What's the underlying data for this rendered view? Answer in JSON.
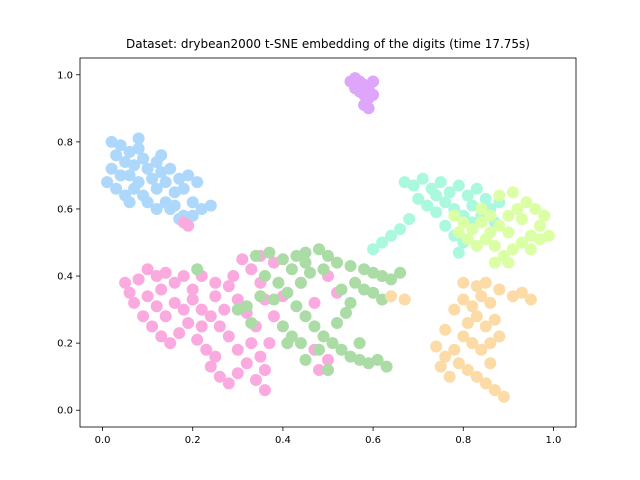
{
  "chart_data": {
    "type": "scatter",
    "title": "Dataset: drybean2000 t-SNE embedding of the digits (time 17.75s)",
    "xlabel": "",
    "ylabel": "",
    "xlim": [
      -0.05,
      1.05
    ],
    "ylim": [
      -0.05,
      1.05
    ],
    "xticks": [
      "0.0",
      "0.2",
      "0.4",
      "0.6",
      "0.8",
      "1.0"
    ],
    "yticks": [
      "0.0",
      "0.2",
      "0.4",
      "0.6",
      "0.8",
      "1.0"
    ],
    "xtick_values": [
      0.0,
      0.2,
      0.4,
      0.6,
      0.8,
      1.0
    ],
    "ytick_values": [
      0.0,
      0.2,
      0.4,
      0.6,
      0.8,
      1.0
    ],
    "grid": false,
    "series": [
      {
        "color": "#add8fb",
        "points": [
          [
            0.02,
            0.8
          ],
          [
            0.04,
            0.79
          ],
          [
            0.03,
            0.76
          ],
          [
            0.05,
            0.74
          ],
          [
            0.02,
            0.72
          ],
          [
            0.04,
            0.7
          ],
          [
            0.01,
            0.68
          ],
          [
            0.03,
            0.66
          ],
          [
            0.06,
            0.77
          ],
          [
            0.07,
            0.73
          ],
          [
            0.08,
            0.78
          ],
          [
            0.09,
            0.75
          ],
          [
            0.1,
            0.72
          ],
          [
            0.11,
            0.69
          ],
          [
            0.08,
            0.68
          ],
          [
            0.06,
            0.7
          ],
          [
            0.07,
            0.66
          ],
          [
            0.09,
            0.64
          ],
          [
            0.12,
            0.74
          ],
          [
            0.13,
            0.71
          ],
          [
            0.14,
            0.68
          ],
          [
            0.12,
            0.66
          ],
          [
            0.15,
            0.72
          ],
          [
            0.1,
            0.62
          ],
          [
            0.12,
            0.6
          ],
          [
            0.14,
            0.62
          ],
          [
            0.16,
            0.65
          ],
          [
            0.17,
            0.69
          ],
          [
            0.18,
            0.66
          ],
          [
            0.16,
            0.61
          ],
          [
            0.18,
            0.58
          ],
          [
            0.2,
            0.62
          ],
          [
            0.2,
            0.58
          ],
          [
            0.22,
            0.6
          ],
          [
            0.19,
            0.7
          ],
          [
            0.21,
            0.68
          ],
          [
            0.24,
            0.61
          ],
          [
            0.05,
            0.64
          ],
          [
            0.13,
            0.76
          ],
          [
            0.08,
            0.81
          ],
          [
            0.15,
            0.6
          ],
          [
            0.17,
            0.57
          ],
          [
            0.06,
            0.62
          ]
        ]
      },
      {
        "color": "#dda6fa",
        "points": [
          [
            0.55,
            0.98
          ],
          [
            0.56,
            0.99
          ],
          [
            0.57,
            0.98
          ],
          [
            0.58,
            0.97
          ],
          [
            0.56,
            0.96
          ],
          [
            0.57,
            0.95
          ],
          [
            0.58,
            0.94
          ],
          [
            0.59,
            0.93
          ],
          [
            0.58,
            0.91
          ],
          [
            0.59,
            0.9
          ],
          [
            0.6,
            0.94
          ],
          [
            0.59,
            0.96
          ],
          [
            0.6,
            0.98
          ]
        ]
      },
      {
        "color": "#fbaadf",
        "points": [
          [
            0.05,
            0.38
          ],
          [
            0.06,
            0.35
          ],
          [
            0.08,
            0.39
          ],
          [
            0.1,
            0.42
          ],
          [
            0.12,
            0.4
          ],
          [
            0.14,
            0.41
          ],
          [
            0.16,
            0.38
          ],
          [
            0.18,
            0.4
          ],
          [
            0.2,
            0.36
          ],
          [
            0.1,
            0.34
          ],
          [
            0.12,
            0.31
          ],
          [
            0.09,
            0.28
          ],
          [
            0.11,
            0.25
          ],
          [
            0.13,
            0.22
          ],
          [
            0.15,
            0.2
          ],
          [
            0.17,
            0.23
          ],
          [
            0.19,
            0.26
          ],
          [
            0.14,
            0.28
          ],
          [
            0.16,
            0.32
          ],
          [
            0.18,
            0.3
          ],
          [
            0.2,
            0.33
          ],
          [
            0.22,
            0.3
          ],
          [
            0.24,
            0.28
          ],
          [
            0.22,
            0.25
          ],
          [
            0.21,
            0.21
          ],
          [
            0.23,
            0.18
          ],
          [
            0.25,
            0.16
          ],
          [
            0.24,
            0.13
          ],
          [
            0.26,
            0.1
          ],
          [
            0.28,
            0.08
          ],
          [
            0.3,
            0.11
          ],
          [
            0.32,
            0.14
          ],
          [
            0.3,
            0.18
          ],
          [
            0.28,
            0.22
          ],
          [
            0.26,
            0.25
          ],
          [
            0.27,
            0.3
          ],
          [
            0.25,
            0.34
          ],
          [
            0.28,
            0.37
          ],
          [
            0.3,
            0.33
          ],
          [
            0.32,
            0.29
          ],
          [
            0.34,
            0.25
          ],
          [
            0.33,
            0.2
          ],
          [
            0.35,
            0.16
          ],
          [
            0.36,
            0.12
          ],
          [
            0.37,
            0.2
          ],
          [
            0.38,
            0.28
          ],
          [
            0.36,
            0.33
          ],
          [
            0.35,
            0.38
          ],
          [
            0.33,
            0.42
          ],
          [
            0.31,
            0.45
          ],
          [
            0.35,
            0.46
          ],
          [
            0.38,
            0.44
          ],
          [
            0.36,
            0.06
          ],
          [
            0.34,
            0.09
          ],
          [
            0.22,
            0.4
          ],
          [
            0.25,
            0.38
          ],
          [
            0.29,
            0.4
          ],
          [
            0.4,
            0.34
          ],
          [
            0.44,
            0.38
          ],
          [
            0.47,
            0.32
          ],
          [
            0.5,
            0.4
          ],
          [
            0.52,
            0.35
          ],
          [
            0.48,
            0.12
          ],
          [
            0.5,
            0.15
          ],
          [
            0.47,
            0.18
          ],
          [
            0.18,
            0.56
          ],
          [
            0.19,
            0.55
          ],
          [
            0.07,
            0.32
          ],
          [
            0.13,
            0.36
          ]
        ]
      },
      {
        "color": "#abdca6",
        "points": [
          [
            0.34,
            0.46
          ],
          [
            0.37,
            0.47
          ],
          [
            0.4,
            0.45
          ],
          [
            0.43,
            0.46
          ],
          [
            0.45,
            0.47
          ],
          [
            0.48,
            0.48
          ],
          [
            0.5,
            0.46
          ],
          [
            0.52,
            0.44
          ],
          [
            0.55,
            0.43
          ],
          [
            0.58,
            0.42
          ],
          [
            0.6,
            0.41
          ],
          [
            0.62,
            0.4
          ],
          [
            0.64,
            0.39
          ],
          [
            0.66,
            0.41
          ],
          [
            0.42,
            0.42
          ],
          [
            0.46,
            0.41
          ],
          [
            0.49,
            0.42
          ],
          [
            0.44,
            0.38
          ],
          [
            0.41,
            0.35
          ],
          [
            0.43,
            0.31
          ],
          [
            0.45,
            0.28
          ],
          [
            0.47,
            0.25
          ],
          [
            0.49,
            0.22
          ],
          [
            0.51,
            0.2
          ],
          [
            0.53,
            0.18
          ],
          [
            0.55,
            0.16
          ],
          [
            0.57,
            0.15
          ],
          [
            0.59,
            0.14
          ],
          [
            0.61,
            0.15
          ],
          [
            0.63,
            0.13
          ],
          [
            0.52,
            0.26
          ],
          [
            0.54,
            0.29
          ],
          [
            0.55,
            0.32
          ],
          [
            0.53,
            0.36
          ],
          [
            0.56,
            0.38
          ],
          [
            0.58,
            0.36
          ],
          [
            0.6,
            0.35
          ],
          [
            0.62,
            0.33
          ],
          [
            0.4,
            0.25
          ],
          [
            0.42,
            0.22
          ],
          [
            0.44,
            0.2
          ],
          [
            0.38,
            0.33
          ],
          [
            0.35,
            0.34
          ],
          [
            0.32,
            0.31
          ],
          [
            0.3,
            0.3
          ],
          [
            0.33,
            0.26
          ],
          [
            0.5,
            0.12
          ],
          [
            0.45,
            0.15
          ],
          [
            0.48,
            0.18
          ],
          [
            0.36,
            0.4
          ],
          [
            0.39,
            0.38
          ],
          [
            0.21,
            0.42
          ],
          [
            0.45,
            0.44
          ],
          [
            0.57,
            0.2
          ],
          [
            0.41,
            0.2
          ]
        ]
      },
      {
        "color": "#aaf9df",
        "points": [
          [
            0.67,
            0.68
          ],
          [
            0.69,
            0.67
          ],
          [
            0.71,
            0.69
          ],
          [
            0.73,
            0.66
          ],
          [
            0.75,
            0.68
          ],
          [
            0.77,
            0.65
          ],
          [
            0.79,
            0.67
          ],
          [
            0.81,
            0.64
          ],
          [
            0.83,
            0.66
          ],
          [
            0.85,
            0.63
          ],
          [
            0.7,
            0.63
          ],
          [
            0.72,
            0.61
          ],
          [
            0.74,
            0.59
          ],
          [
            0.76,
            0.62
          ],
          [
            0.78,
            0.6
          ],
          [
            0.8,
            0.58
          ],
          [
            0.82,
            0.56
          ],
          [
            0.84,
            0.58
          ],
          [
            0.86,
            0.6
          ],
          [
            0.88,
            0.62
          ],
          [
            0.76,
            0.55
          ],
          [
            0.78,
            0.52
          ],
          [
            0.8,
            0.5
          ],
          [
            0.79,
            0.47
          ],
          [
            0.68,
            0.57
          ],
          [
            0.66,
            0.54
          ],
          [
            0.64,
            0.52
          ],
          [
            0.62,
            0.5
          ],
          [
            0.6,
            0.48
          ],
          [
            0.87,
            0.56
          ],
          [
            0.74,
            0.64
          ],
          [
            0.82,
            0.61
          ]
        ]
      },
      {
        "color": "#daffa5",
        "points": [
          [
            0.78,
            0.58
          ],
          [
            0.8,
            0.56
          ],
          [
            0.82,
            0.54
          ],
          [
            0.84,
            0.56
          ],
          [
            0.86,
            0.53
          ],
          [
            0.88,
            0.55
          ],
          [
            0.9,
            0.58
          ],
          [
            0.92,
            0.6
          ],
          [
            0.94,
            0.62
          ],
          [
            0.96,
            0.6
          ],
          [
            0.98,
            0.58
          ],
          [
            0.97,
            0.55
          ],
          [
            0.95,
            0.52
          ],
          [
            0.93,
            0.5
          ],
          [
            0.91,
            0.48
          ],
          [
            0.89,
            0.46
          ],
          [
            0.87,
            0.49
          ],
          [
            0.85,
            0.51
          ],
          [
            0.83,
            0.49
          ],
          [
            0.81,
            0.51
          ],
          [
            0.79,
            0.53
          ],
          [
            0.88,
            0.64
          ],
          [
            0.91,
            0.65
          ],
          [
            0.93,
            0.57
          ],
          [
            0.95,
            0.48
          ],
          [
            0.97,
            0.51
          ],
          [
            0.99,
            0.52
          ],
          [
            0.9,
            0.53
          ],
          [
            0.86,
            0.58
          ],
          [
            0.84,
            0.6
          ],
          [
            0.87,
            0.44
          ],
          [
            0.9,
            0.44
          ]
        ]
      },
      {
        "color": "#fcdba6",
        "points": [
          [
            0.78,
            0.3
          ],
          [
            0.8,
            0.33
          ],
          [
            0.82,
            0.31
          ],
          [
            0.84,
            0.34
          ],
          [
            0.86,
            0.32
          ],
          [
            0.83,
            0.28
          ],
          [
            0.81,
            0.26
          ],
          [
            0.85,
            0.25
          ],
          [
            0.87,
            0.27
          ],
          [
            0.8,
            0.22
          ],
          [
            0.82,
            0.2
          ],
          [
            0.84,
            0.18
          ],
          [
            0.86,
            0.2
          ],
          [
            0.88,
            0.22
          ],
          [
            0.78,
            0.18
          ],
          [
            0.76,
            0.16
          ],
          [
            0.79,
            0.14
          ],
          [
            0.81,
            0.12
          ],
          [
            0.83,
            0.1
          ],
          [
            0.85,
            0.08
          ],
          [
            0.87,
            0.06
          ],
          [
            0.89,
            0.04
          ],
          [
            0.77,
            0.1
          ],
          [
            0.75,
            0.13
          ],
          [
            0.74,
            0.19
          ],
          [
            0.76,
            0.24
          ],
          [
            0.88,
            0.36
          ],
          [
            0.85,
            0.38
          ],
          [
            0.83,
            0.37
          ],
          [
            0.93,
            0.35
          ],
          [
            0.95,
            0.33
          ],
          [
            0.91,
            0.34
          ],
          [
            0.64,
            0.34
          ],
          [
            0.67,
            0.33
          ],
          [
            0.8,
            0.38
          ],
          [
            0.86,
            0.14
          ]
        ]
      }
    ]
  }
}
